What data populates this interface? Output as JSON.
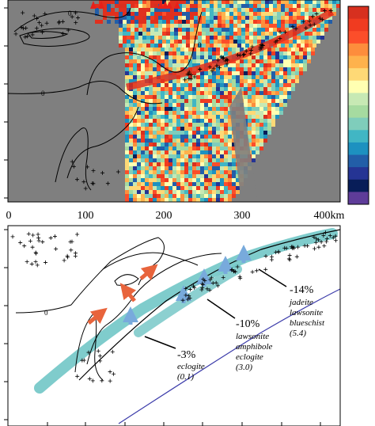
{
  "x_axis": {
    "ticks": [
      "0",
      "100",
      "200",
      "300",
      "400km"
    ]
  },
  "top_panel": {
    "contour_labels": [
      "0",
      "0",
      "0"
    ],
    "colorbar": [
      "#d7301f",
      "#f03b20",
      "#fc4e2a",
      "#fd8d3c",
      "#feb24c",
      "#fed976",
      "#ffffb2",
      "#c7e9b4",
      "#a6dba0",
      "#7fcdbb",
      "#41b6c4",
      "#1d91c0",
      "#225ea8",
      "#253494",
      "#081d58",
      "#5e3c99"
    ]
  },
  "bottom_panel": {
    "contour_label": "0",
    "annotations": [
      {
        "pct": "-14%",
        "rocks": [
          "jadeite",
          "lawsonite",
          "blueschist"
        ],
        "value": "(5.4)"
      },
      {
        "pct": "-10%",
        "rocks": [
          "lawsonite",
          "amphibole",
          "eclogite"
        ],
        "value": "(3.0)"
      },
      {
        "pct": "-3%",
        "rocks": [
          "eclogite"
        ],
        "value": "(0.1)"
      }
    ]
  },
  "colors": {
    "background_gray": "#808080",
    "slab_band": "#7fcccc",
    "arrow_orange": "#e8643c",
    "arrow_blue": "#78aadc",
    "moho_line": "#3c3caa"
  }
}
